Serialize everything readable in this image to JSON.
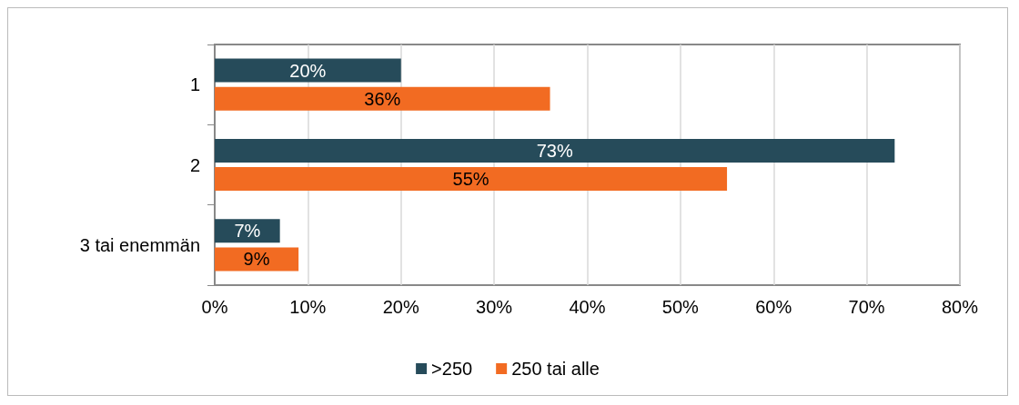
{
  "chart_data": {
    "type": "bar",
    "orientation": "horizontal",
    "categories": [
      "1",
      "2",
      "3 tai enemmän"
    ],
    "series": [
      {
        "name": ">250",
        "color": "#264b5a",
        "values": [
          20,
          73,
          7
        ],
        "value_labels": [
          "20%",
          "73%",
          "7%"
        ]
      },
      {
        "name": "250 tai alle",
        "color": "#f26b22",
        "values": [
          36,
          55,
          9
        ],
        "value_labels": [
          "36%",
          "55%",
          "9%"
        ]
      }
    ],
    "xlim": [
      0,
      80
    ],
    "xticks": [
      {
        "value": 0,
        "label": "0%"
      },
      {
        "value": 10,
        "label": "10%"
      },
      {
        "value": 20,
        "label": "20%"
      },
      {
        "value": 30,
        "label": "30%"
      },
      {
        "value": 40,
        "label": "40%"
      },
      {
        "value": 50,
        "label": "50%"
      },
      {
        "value": 60,
        "label": "60%"
      },
      {
        "value": 70,
        "label": "70%"
      },
      {
        "value": 80,
        "label": "80%"
      }
    ],
    "grid": "x",
    "legend": "bottom"
  }
}
